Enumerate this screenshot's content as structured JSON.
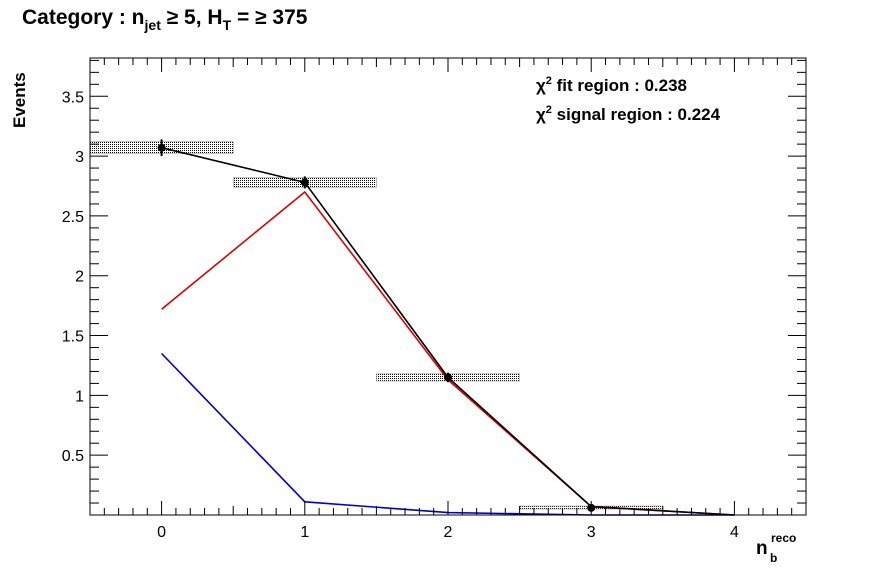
{
  "title": {
    "prefix": "Category : n",
    "sub1": "jet",
    "mid": " ≥ 5,    H",
    "sub2": "T",
    "suffix": " = ≥ 375"
  },
  "stats": {
    "fit": {
      "chi": "χ",
      "exp": "2",
      "text": " fit region : 0.238"
    },
    "signal": {
      "chi": "χ",
      "exp": "2",
      "text": " signal region : 0.224"
    }
  },
  "chart_data": {
    "type": "line",
    "ylabel": "Events",
    "xlabel": {
      "base": "n",
      "sub": "b",
      "sup": "reco"
    },
    "xlim": [
      -0.5,
      4.5
    ],
    "ylim": [
      0,
      3.82
    ],
    "x_ticks": [
      "0",
      "1",
      "2",
      "3",
      "4"
    ],
    "y_ticks": [
      "0.5",
      "1",
      "1.5",
      "2",
      "2.5",
      "3",
      "3.5"
    ],
    "x": [
      0,
      1,
      2,
      3,
      4
    ],
    "series": [
      {
        "color": "#000000",
        "values": [
          3.07,
          2.78,
          1.15,
          0.07,
          0.0
        ]
      },
      {
        "color": "#dd0000",
        "values": [
          1.72,
          2.7,
          1.13,
          0.07,
          0.0
        ]
      },
      {
        "color": "#0000cc",
        "values": [
          1.35,
          0.11,
          0.02,
          0.0,
          0.0
        ]
      }
    ],
    "data_points": {
      "x": [
        0,
        1,
        2,
        3
      ],
      "y": [
        3.07,
        2.78,
        1.15,
        0.06
      ],
      "yerr": [
        0.07,
        0.05,
        0.04,
        0.01
      ]
    },
    "bands": [
      {
        "x0": -0.5,
        "x1": 0.5,
        "y0": 3.02,
        "y1": 3.12
      },
      {
        "x0": 0.5,
        "x1": 1.5,
        "y0": 2.74,
        "y1": 2.82
      },
      {
        "x0": 1.5,
        "x1": 2.5,
        "y0": 1.12,
        "y1": 1.18
      },
      {
        "x0": 2.5,
        "x1": 3.5,
        "y0": 0.05,
        "y1": 0.075
      }
    ]
  }
}
